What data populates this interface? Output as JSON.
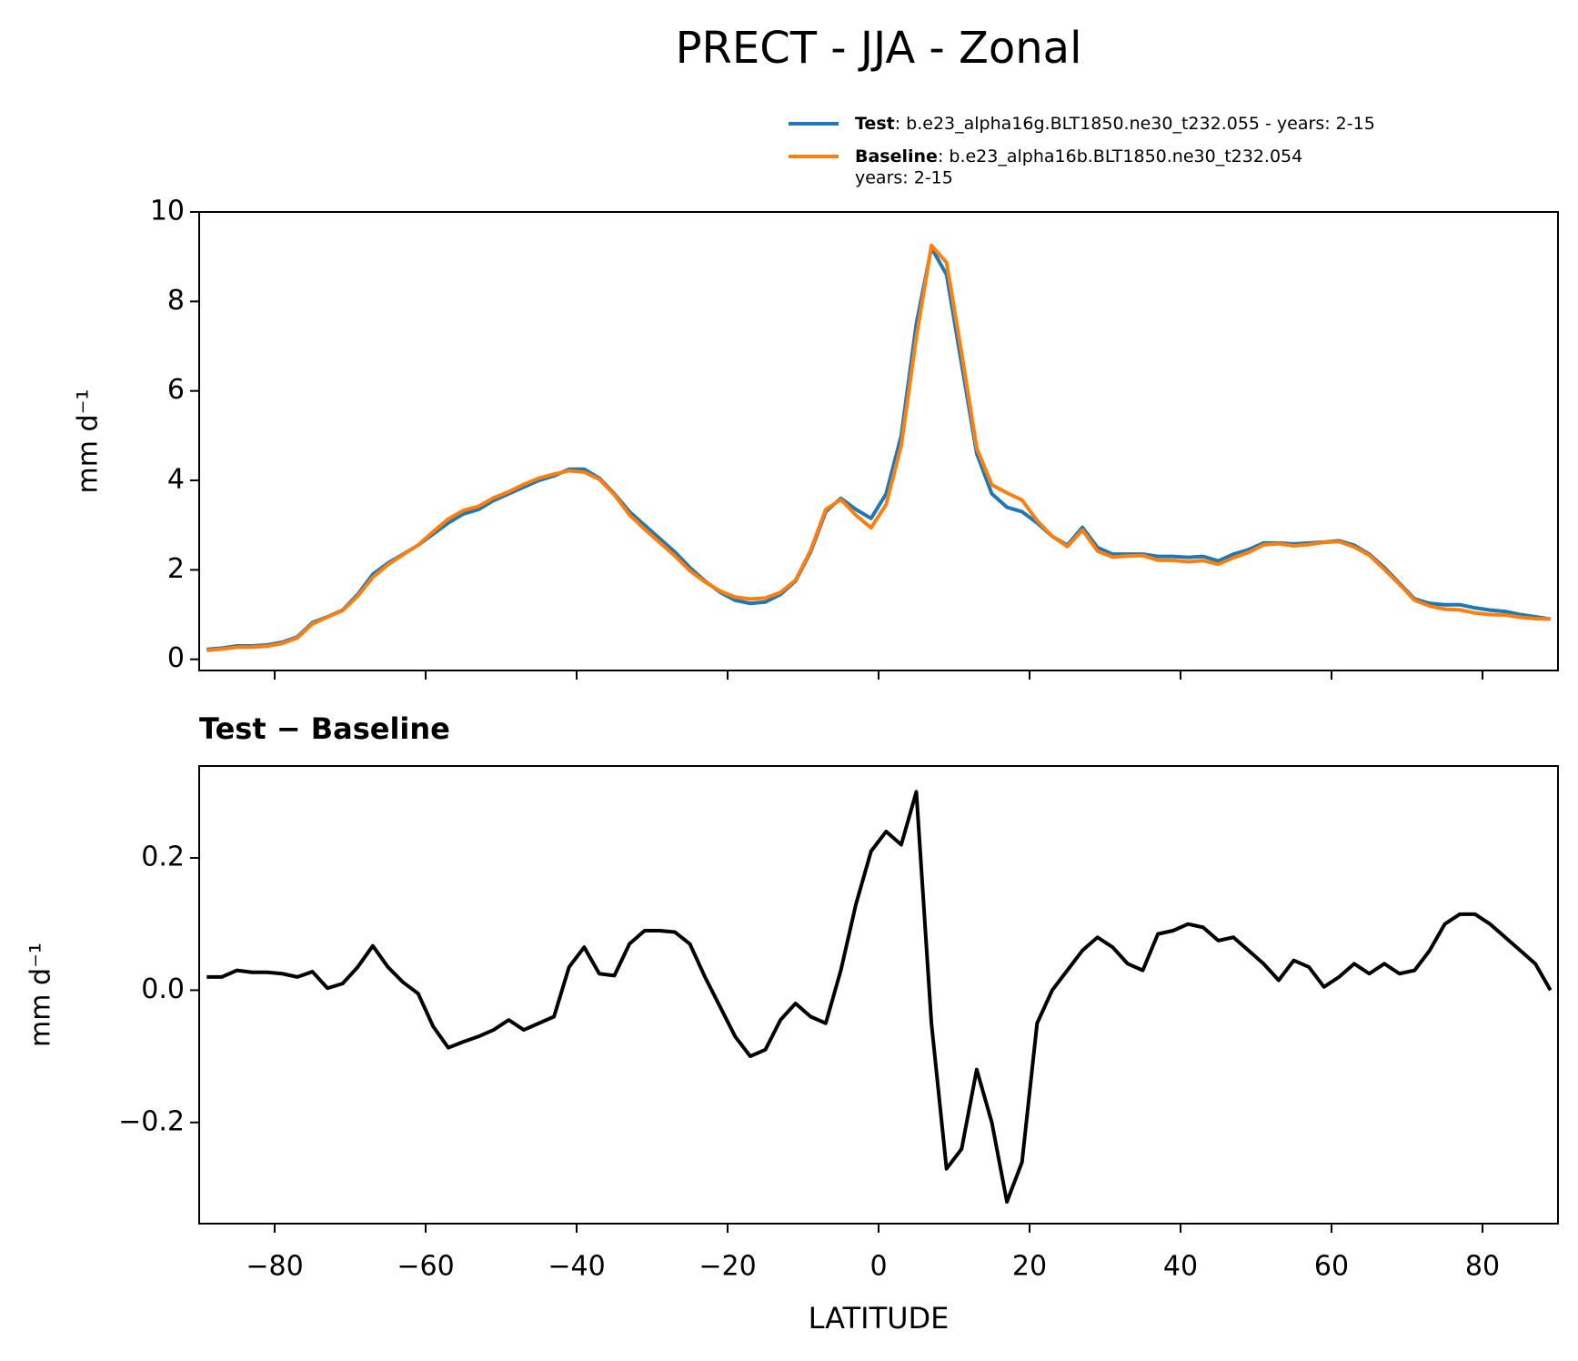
{
  "chart_data": [
    {
      "type": "line",
      "title": "PRECT - JJA - Zonal",
      "ylabel": "mm d⁻¹",
      "x": [
        -89,
        -87,
        -85,
        -83,
        -81,
        -79,
        -77,
        -75,
        -73,
        -71,
        -69,
        -67,
        -65,
        -63,
        -61,
        -59,
        -57,
        -55,
        -53,
        -51,
        -49,
        -47,
        -45,
        -43,
        -41,
        -39,
        -37,
        -35,
        -33,
        -31,
        -29,
        -27,
        -25,
        -23,
        -21,
        -19,
        -17,
        -15,
        -13,
        -11,
        -9,
        -7,
        -5,
        -3,
        -1,
        1,
        3,
        5,
        7,
        9,
        11,
        13,
        15,
        17,
        19,
        21,
        23,
        25,
        27,
        29,
        31,
        33,
        35,
        37,
        39,
        41,
        43,
        45,
        47,
        49,
        51,
        53,
        55,
        57,
        59,
        61,
        63,
        65,
        67,
        69,
        71,
        73,
        75,
        77,
        79,
        81,
        83,
        85,
        87,
        89
      ],
      "series": [
        {
          "name": "Test",
          "description_lines": [
            ": b.e23_alpha16g.BLT1850.ne30_t232.055 - years: 2-15"
          ],
          "color": "#1f77b4",
          "values": [
            0.22,
            0.25,
            0.3,
            0.3,
            0.32,
            0.38,
            0.5,
            0.82,
            0.95,
            1.1,
            1.45,
            1.9,
            2.15,
            2.35,
            2.55,
            2.8,
            3.05,
            3.25,
            3.35,
            3.55,
            3.7,
            3.85,
            4.0,
            4.1,
            4.25,
            4.25,
            4.05,
            3.7,
            3.3,
            3.0,
            2.7,
            2.4,
            2.05,
            1.75,
            1.5,
            1.32,
            1.25,
            1.28,
            1.45,
            1.75,
            2.4,
            3.3,
            3.6,
            3.35,
            3.15,
            3.7,
            5.0,
            7.5,
            9.2,
            8.6,
            6.6,
            4.6,
            3.7,
            3.4,
            3.3,
            3.05,
            2.75,
            2.55,
            2.95,
            2.5,
            2.35,
            2.35,
            2.35,
            2.3,
            2.3,
            2.28,
            2.3,
            2.2,
            2.35,
            2.45,
            2.6,
            2.6,
            2.58,
            2.6,
            2.62,
            2.65,
            2.55,
            2.35,
            2.05,
            1.7,
            1.35,
            1.25,
            1.22,
            1.22,
            1.15,
            1.1,
            1.07,
            1.0,
            0.95,
            0.9
          ]
        },
        {
          "name": "Baseline",
          "description_lines": [
            ": b.e23_alpha16b.BLT1850.ne30_t232.054",
            "years: 2-15"
          ],
          "color": "#ff7f0e",
          "values": [
            0.2,
            0.23,
            0.27,
            0.273,
            0.293,
            0.355,
            0.48,
            0.792,
            0.947,
            1.09,
            1.415,
            1.833,
            2.115,
            2.338,
            2.555,
            2.855,
            3.137,
            3.328,
            3.42,
            3.61,
            3.745,
            3.91,
            4.05,
            4.14,
            4.215,
            4.185,
            4.025,
            3.678,
            3.23,
            2.91,
            2.61,
            2.312,
            1.98,
            1.73,
            1.525,
            1.39,
            1.35,
            1.37,
            1.495,
            1.77,
            2.44,
            3.35,
            3.57,
            3.22,
            2.94,
            3.46,
            4.78,
            7.2,
            9.25,
            8.87,
            6.84,
            4.72,
            3.9,
            3.72,
            3.56,
            3.1,
            2.75,
            2.52,
            2.89,
            2.42,
            2.285,
            2.31,
            2.32,
            2.215,
            2.21,
            2.18,
            2.205,
            2.125,
            2.27,
            2.39,
            2.56,
            2.585,
            2.535,
            2.565,
            2.615,
            2.63,
            2.51,
            2.325,
            2.01,
            1.675,
            1.32,
            1.19,
            1.12,
            1.105,
            1.035,
            1.0,
            0.99,
            0.94,
            0.91,
            0.9
          ]
        }
      ],
      "xlim": [
        -90,
        90
      ],
      "xticks": [
        -80,
        -60,
        -40,
        -20,
        0,
        20,
        40,
        60,
        80
      ],
      "ylim": [
        -0.25,
        10
      ],
      "yticks": [
        0,
        2,
        4,
        6,
        8,
        10
      ]
    },
    {
      "type": "line",
      "title": "Test − Baseline",
      "ylabel": "mm d⁻¹",
      "xlabel": "LATITUDE",
      "x": [
        -89,
        -87,
        -85,
        -83,
        -81,
        -79,
        -77,
        -75,
        -73,
        -71,
        -69,
        -67,
        -65,
        -63,
        -61,
        -59,
        -57,
        -55,
        -53,
        -51,
        -49,
        -47,
        -45,
        -43,
        -41,
        -39,
        -37,
        -35,
        -33,
        -31,
        -29,
        -27,
        -25,
        -23,
        -21,
        -19,
        -17,
        -15,
        -13,
        -11,
        -9,
        -7,
        -5,
        -3,
        -1,
        1,
        3,
        5,
        7,
        9,
        11,
        13,
        15,
        17,
        19,
        21,
        23,
        25,
        27,
        29,
        31,
        33,
        35,
        37,
        39,
        41,
        43,
        45,
        47,
        49,
        51,
        53,
        55,
        57,
        59,
        61,
        63,
        65,
        67,
        69,
        71,
        73,
        75,
        77,
        79,
        81,
        83,
        85,
        87,
        89
      ],
      "series": [
        {
          "color": "#000000",
          "values": [
            0.02,
            0.02,
            0.03,
            0.027,
            0.027,
            0.025,
            0.02,
            0.028,
            0.003,
            0.01,
            0.035,
            0.067,
            0.035,
            0.012,
            -0.005,
            -0.055,
            -0.087,
            -0.078,
            -0.07,
            -0.06,
            -0.045,
            -0.06,
            -0.05,
            -0.04,
            0.035,
            0.065,
            0.025,
            0.022,
            0.07,
            0.09,
            0.09,
            0.088,
            0.07,
            0.02,
            -0.025,
            -0.07,
            -0.1,
            -0.09,
            -0.045,
            -0.02,
            -0.04,
            -0.05,
            0.03,
            0.13,
            0.21,
            0.24,
            0.22,
            0.3,
            -0.05,
            -0.27,
            -0.24,
            -0.12,
            -0.2,
            -0.32,
            -0.26,
            -0.05,
            0.0,
            0.03,
            0.06,
            0.08,
            0.065,
            0.04,
            0.03,
            0.085,
            0.09,
            0.1,
            0.095,
            0.075,
            0.08,
            0.06,
            0.04,
            0.015,
            0.045,
            0.035,
            0.005,
            0.02,
            0.04,
            0.025,
            0.04,
            0.025,
            0.03,
            0.06,
            0.1,
            0.115,
            0.115,
            0.1,
            0.08,
            0.06,
            0.04,
            0.0
          ]
        }
      ],
      "xlim": [
        -90,
        90
      ],
      "xticks": [
        {
          "value": -80,
          "label": "−80"
        },
        {
          "value": -60,
          "label": "−60"
        },
        {
          "value": -40,
          "label": "−40"
        },
        {
          "value": -20,
          "label": "−20"
        },
        0,
        20,
        40,
        60,
        80
      ],
      "ylim": [
        -0.353,
        0.339
      ],
      "yticks": [
        {
          "value": -0.2,
          "label": "−0.2"
        },
        {
          "value": 0.0,
          "label": "0.0"
        },
        {
          "value": 0.2,
          "label": "0.2"
        }
      ]
    }
  ]
}
